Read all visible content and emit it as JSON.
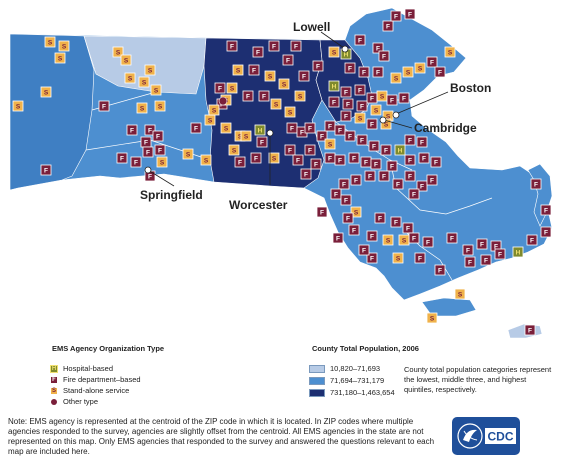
{
  "cities": [
    {
      "name": "Lowell",
      "label": "Lowell"
    },
    {
      "name": "Boston",
      "label": "Boston"
    },
    {
      "name": "Cambridge",
      "label": "Cambridge"
    },
    {
      "name": "Springfield",
      "label": "Springfield"
    },
    {
      "name": "Worcester",
      "label": "Worcester"
    }
  ],
  "agency_legend": {
    "title": "EMS Agency Organization Type",
    "items": [
      {
        "code": "H",
        "label": "Hospital-based",
        "color": "#7f8a2d"
      },
      {
        "code": "F",
        "label": "Fire department–based",
        "color": "#7a1f3a"
      },
      {
        "code": "S",
        "label": "Stand-alone service",
        "color": "#f0b24a"
      },
      {
        "code": "",
        "label": "Other type",
        "color": "#7a1f3a"
      }
    ]
  },
  "population_legend": {
    "title": "County Total Population, 2006",
    "bands": [
      {
        "label": "10,820–71,693",
        "color": "#b7cbe6"
      },
      {
        "label": "71,694–731,179",
        "color": "#4d8fd0"
      },
      {
        "label": "731,180–1,463,654",
        "color": "#1d2f72"
      }
    ],
    "note": "County total population categories represent the lowest, middle three, and highest quintiles, respectively."
  },
  "footnote": "Note: EMS agency is represented at the centroid of the ZIP code in which it is located. In ZIP codes where multiple agencies responded to the survey, agencies are slightly offset from the centroid. All EMS agencies in the state are not represented on this map. Only EMS agencies that responded to the survey and answered the questions relevant to each map are included here.",
  "logo": {
    "text": "CDC"
  },
  "colors": {
    "county_light": "#b7cbe6",
    "county_mid": "#4d8fd0",
    "county_dark": "#1d2f72",
    "fire": "#7a1f3a",
    "standalone": "#f0b24a",
    "hospital": "#7f8a2d"
  }
}
